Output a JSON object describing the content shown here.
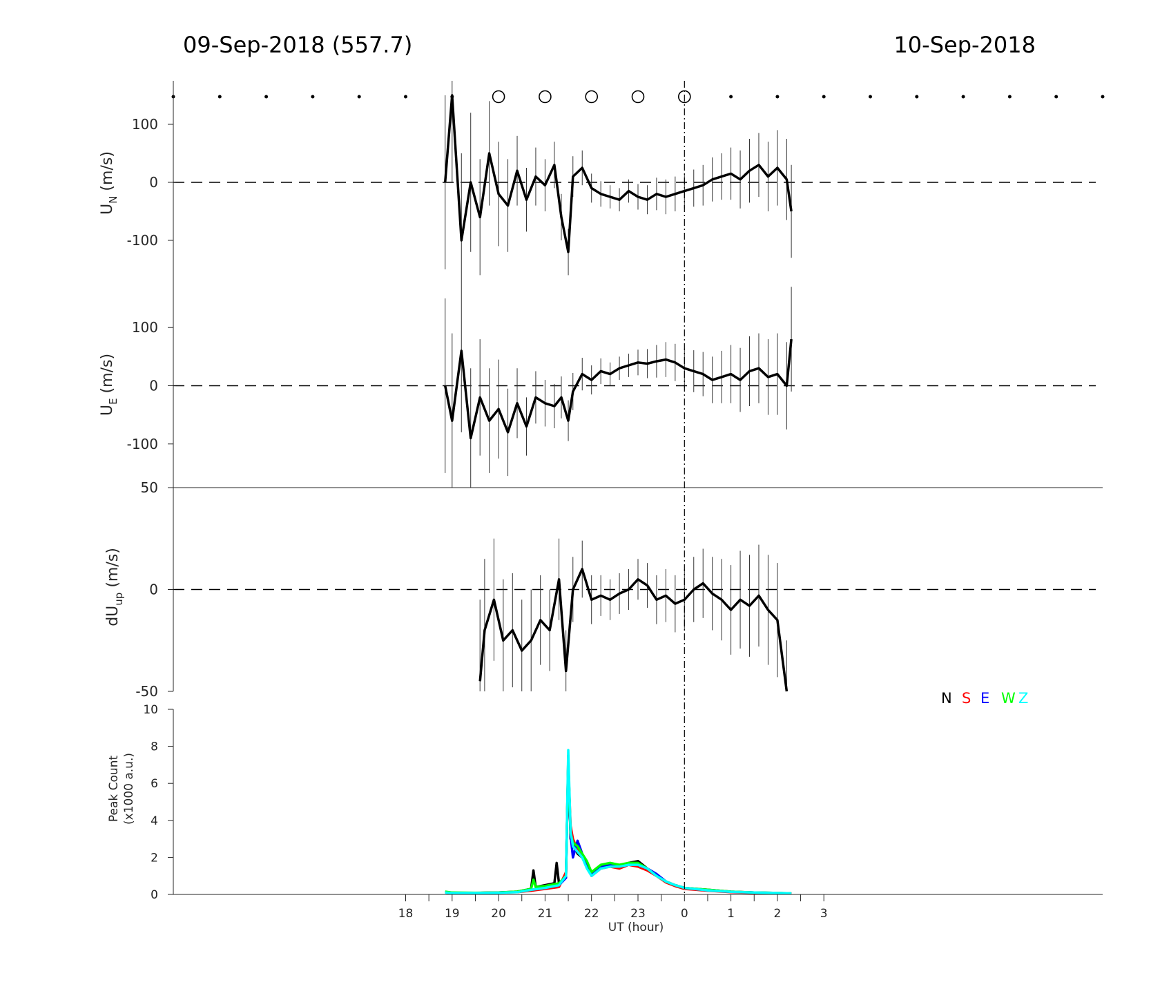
{
  "header": {
    "left": "09-Sep-2018 (557.7)",
    "right": "10-Sep-2018"
  },
  "colors": {
    "N": "#000000",
    "S": "#ff0000",
    "E": "#0000ff",
    "W": "#00ff00",
    "Z": "#00ffff"
  },
  "chart_data": [
    {
      "type": "line",
      "panel": "U_N",
      "ylabel": "U_N (m/s)",
      "ylabel_main": "U",
      "ylabel_sub": "N",
      "ylabel_unit": " (m/s)",
      "xlim_hours": [
        13,
        33
      ],
      "ylim": [
        -175,
        175
      ],
      "yticks": [
        -100,
        0,
        100
      ],
      "ytick_labels": [
        "-100",
        "0",
        "100"
      ],
      "x_hours": [
        18.85,
        19.0,
        19.2,
        19.4,
        19.6,
        19.8,
        20.0,
        20.2,
        20.4,
        20.6,
        20.8,
        21.0,
        21.2,
        21.35,
        21.5,
        21.6,
        21.8,
        22.0,
        22.2,
        22.4,
        22.6,
        22.8,
        23.0,
        23.2,
        23.4,
        23.6,
        23.8,
        24.0,
        24.2,
        24.4,
        24.6,
        24.8,
        25.0,
        25.2,
        25.4,
        25.6,
        25.8,
        26.0,
        26.2,
        26.3
      ],
      "values": [
        0,
        150,
        -100,
        0,
        -60,
        50,
        -20,
        -40,
        20,
        -30,
        10,
        -5,
        30,
        -60,
        -120,
        10,
        25,
        -10,
        -20,
        -25,
        -30,
        -15,
        -25,
        -30,
        -20,
        -25,
        -20,
        -15,
        -10,
        -5,
        5,
        10,
        15,
        5,
        20,
        30,
        10,
        25,
        5,
        -50
      ],
      "errorbar_halfwidth": [
        150,
        150,
        150,
        120,
        100,
        90,
        90,
        80,
        60,
        55,
        50,
        45,
        40,
        40,
        40,
        35,
        30,
        25,
        22,
        20,
        20,
        20,
        22,
        25,
        28,
        30,
        30,
        30,
        32,
        35,
        38,
        40,
        45,
        50,
        55,
        55,
        60,
        65,
        70,
        80
      ],
      "zero_line": true
    },
    {
      "type": "line",
      "panel": "U_E",
      "ylabel": "U_E (m/s)",
      "ylabel_main": "U",
      "ylabel_sub": "E",
      "ylabel_unit": " (m/s)",
      "xlim_hours": [
        13,
        33
      ],
      "ylim": [
        -175,
        175
      ],
      "yticks": [
        -100,
        0,
        100
      ],
      "ytick_labels": [
        "-100",
        "0",
        "100"
      ],
      "x_hours": [
        18.85,
        19.0,
        19.2,
        19.4,
        19.6,
        19.8,
        20.0,
        20.2,
        20.4,
        20.6,
        20.8,
        21.0,
        21.2,
        21.35,
        21.5,
        21.6,
        21.8,
        22.0,
        22.2,
        22.4,
        22.6,
        22.8,
        23.0,
        23.2,
        23.4,
        23.6,
        23.8,
        24.0,
        24.2,
        24.4,
        24.6,
        24.8,
        25.0,
        25.2,
        25.4,
        25.6,
        25.8,
        26.0,
        26.2,
        26.3
      ],
      "values": [
        0,
        -60,
        60,
        -90,
        -20,
        -60,
        -40,
        -80,
        -30,
        -70,
        -20,
        -30,
        -35,
        -20,
        -60,
        -10,
        20,
        10,
        25,
        20,
        30,
        35,
        40,
        38,
        42,
        45,
        40,
        30,
        25,
        20,
        10,
        15,
        20,
        10,
        25,
        30,
        15,
        20,
        0,
        80
      ],
      "errorbar_halfwidth": [
        150,
        150,
        140,
        120,
        100,
        90,
        85,
        75,
        60,
        50,
        45,
        40,
        38,
        36,
        35,
        32,
        28,
        25,
        22,
        20,
        20,
        20,
        22,
        25,
        28,
        30,
        32,
        34,
        36,
        38,
        40,
        45,
        50,
        55,
        60,
        60,
        65,
        70,
        75,
        90
      ],
      "zero_line": true
    },
    {
      "type": "line",
      "panel": "dU_up",
      "ylabel": "dU_up (m/s)",
      "ylabel_main": "dU",
      "ylabel_sub": "up",
      "ylabel_unit": " (m/s)",
      "xlim_hours": [
        13,
        33
      ],
      "ylim": [
        -50,
        50
      ],
      "yticks": [
        -50,
        0,
        50
      ],
      "ytick_labels": [
        "-50",
        "0",
        "50"
      ],
      "x_hours": [
        19.6,
        19.7,
        19.9,
        20.1,
        20.3,
        20.5,
        20.7,
        20.9,
        21.1,
        21.3,
        21.45,
        21.6,
        21.8,
        22.0,
        22.2,
        22.4,
        22.6,
        22.8,
        23.0,
        23.2,
        23.4,
        23.6,
        23.8,
        24.0,
        24.2,
        24.4,
        24.6,
        24.8,
        25.0,
        25.2,
        25.4,
        25.6,
        25.8,
        26.0,
        26.2
      ],
      "values": [
        -45,
        -20,
        -5,
        -25,
        -20,
        -30,
        -25,
        -15,
        -20,
        5,
        -40,
        0,
        10,
        -5,
        -3,
        -5,
        -2,
        0,
        5,
        2,
        -5,
        -3,
        -7,
        -5,
        0,
        3,
        -2,
        -5,
        -10,
        -5,
        -8,
        -3,
        -10,
        -15,
        -55
      ],
      "errorbar_halfwidth": [
        40,
        35,
        30,
        30,
        28,
        25,
        25,
        22,
        20,
        20,
        20,
        16,
        14,
        12,
        10,
        10,
        10,
        10,
        10,
        11,
        12,
        13,
        14,
        15,
        16,
        17,
        18,
        20,
        22,
        24,
        25,
        25,
        27,
        28,
        30
      ],
      "zero_line": true
    },
    {
      "type": "line",
      "panel": "peak_count",
      "ylabel_line1": "Peak Count",
      "ylabel_line2": "(x1000 a.u.)",
      "xlabel": "UT (hour)",
      "xlim_hours": [
        13,
        33
      ],
      "ylim": [
        0,
        10
      ],
      "yticks": [
        0,
        2,
        4,
        6,
        8,
        10
      ],
      "ytick_labels": [
        "0",
        "2",
        "4",
        "6",
        "8",
        "10"
      ],
      "xticks_hours": [
        18,
        19,
        20,
        21,
        22,
        23,
        24,
        25,
        26,
        27
      ],
      "xtick_labels": [
        "18",
        "19",
        "20",
        "21",
        "22",
        "23",
        "0",
        "1",
        "2",
        "3"
      ],
      "legend": [
        "N",
        "S",
        "E",
        "W",
        "Z"
      ],
      "legend_position": "top-right",
      "series": [
        {
          "name": "N",
          "color": "#000000",
          "x_hours": [
            18.85,
            19.0,
            19.5,
            20.0,
            20.4,
            20.7,
            20.75,
            20.8,
            21.0,
            21.2,
            21.25,
            21.3,
            21.45,
            21.5,
            21.55,
            21.6,
            21.7,
            21.8,
            21.9,
            22.0,
            22.2,
            22.4,
            22.6,
            22.8,
            23.0,
            23.2,
            23.4,
            23.6,
            23.8,
            24.0,
            24.5,
            25.0,
            25.5,
            26.0,
            26.3
          ],
          "values": [
            0.1,
            0.08,
            0.08,
            0.1,
            0.15,
            0.3,
            1.3,
            0.4,
            0.5,
            0.6,
            1.7,
            0.6,
            0.9,
            7.5,
            3.0,
            2.8,
            2.2,
            2.0,
            1.5,
            1.2,
            1.5,
            1.6,
            1.5,
            1.7,
            1.8,
            1.4,
            1.0,
            0.7,
            0.5,
            0.35,
            0.25,
            0.15,
            0.1,
            0.08,
            0.05
          ]
        },
        {
          "name": "S",
          "color": "#ff0000",
          "x_hours": [
            18.85,
            19.0,
            19.5,
            20.0,
            20.4,
            20.7,
            21.0,
            21.3,
            21.45,
            21.5,
            21.55,
            21.6,
            21.7,
            21.8,
            21.9,
            22.0,
            22.2,
            22.4,
            22.6,
            22.8,
            23.0,
            23.2,
            23.4,
            23.6,
            23.8,
            24.0,
            24.5,
            25.0,
            25.5,
            26.0,
            26.3
          ],
          "values": [
            0.1,
            0.08,
            0.08,
            0.1,
            0.12,
            0.2,
            0.3,
            0.4,
            1.2,
            7.0,
            3.7,
            3.0,
            2.4,
            2.0,
            1.6,
            1.0,
            1.4,
            1.5,
            1.4,
            1.6,
            1.5,
            1.3,
            1.0,
            0.65,
            0.45,
            0.3,
            0.2,
            0.12,
            0.08,
            0.06,
            0.05
          ]
        },
        {
          "name": "E",
          "color": "#0000ff",
          "x_hours": [
            18.85,
            19.0,
            19.5,
            20.0,
            20.4,
            20.7,
            21.0,
            21.3,
            21.45,
            21.5,
            21.55,
            21.6,
            21.7,
            21.8,
            21.9,
            22.0,
            22.2,
            22.4,
            22.6,
            22.8,
            23.0,
            23.2,
            23.4,
            23.6,
            23.8,
            24.0,
            24.5,
            25.0,
            25.5,
            26.0,
            26.3
          ],
          "values": [
            0.12,
            0.09,
            0.08,
            0.1,
            0.13,
            0.25,
            0.35,
            0.5,
            0.9,
            7.2,
            3.2,
            2.0,
            2.9,
            2.2,
            1.7,
            1.1,
            1.5,
            1.6,
            1.5,
            1.6,
            1.6,
            1.4,
            1.1,
            0.7,
            0.5,
            0.35,
            0.22,
            0.14,
            0.1,
            0.07,
            0.05
          ]
        },
        {
          "name": "W",
          "color": "#00ff00",
          "x_hours": [
            18.85,
            19.0,
            19.5,
            20.0,
            20.4,
            20.7,
            20.75,
            20.8,
            21.0,
            21.3,
            21.45,
            21.5,
            21.55,
            21.6,
            21.7,
            21.8,
            21.9,
            22.0,
            22.2,
            22.4,
            22.6,
            22.8,
            23.0,
            23.2,
            23.4,
            23.6,
            23.8,
            24.0,
            24.5,
            25.0,
            25.5,
            26.0,
            26.3
          ],
          "values": [
            0.15,
            0.1,
            0.09,
            0.1,
            0.15,
            0.3,
            0.8,
            0.4,
            0.45,
            0.6,
            1.0,
            7.3,
            3.3,
            2.8,
            2.6,
            2.2,
            1.8,
            1.2,
            1.6,
            1.7,
            1.6,
            1.7,
            1.7,
            1.4,
            1.0,
            0.7,
            0.5,
            0.35,
            0.25,
            0.15,
            0.1,
            0.08,
            0.06
          ]
        },
        {
          "name": "Z",
          "color": "#00ffff",
          "x_hours": [
            18.85,
            19.0,
            19.5,
            20.0,
            20.4,
            20.7,
            21.0,
            21.3,
            21.45,
            21.5,
            21.55,
            21.6,
            21.7,
            21.8,
            21.9,
            22.0,
            22.2,
            22.4,
            22.6,
            22.8,
            23.0,
            23.2,
            23.4,
            23.6,
            23.8,
            24.0,
            24.5,
            25.0,
            25.5,
            26.0,
            26.3
          ],
          "values": [
            0.1,
            0.08,
            0.08,
            0.09,
            0.12,
            0.25,
            0.35,
            0.5,
            1.0,
            7.8,
            3.4,
            2.6,
            2.3,
            2.0,
            1.4,
            1.0,
            1.4,
            1.5,
            1.5,
            1.6,
            1.6,
            1.4,
            1.0,
            0.7,
            0.5,
            0.35,
            0.22,
            0.14,
            0.1,
            0.08,
            0.06
          ]
        }
      ]
    }
  ],
  "markers": {
    "x_hours": [
      13,
      14,
      15,
      16,
      17,
      18,
      19,
      20,
      21,
      22,
      23,
      24,
      25,
      26,
      27,
      28,
      29,
      30,
      31,
      32,
      33
    ],
    "open_circle_hours": [
      20,
      21,
      22,
      23,
      24
    ],
    "midnight_hour": 24
  }
}
